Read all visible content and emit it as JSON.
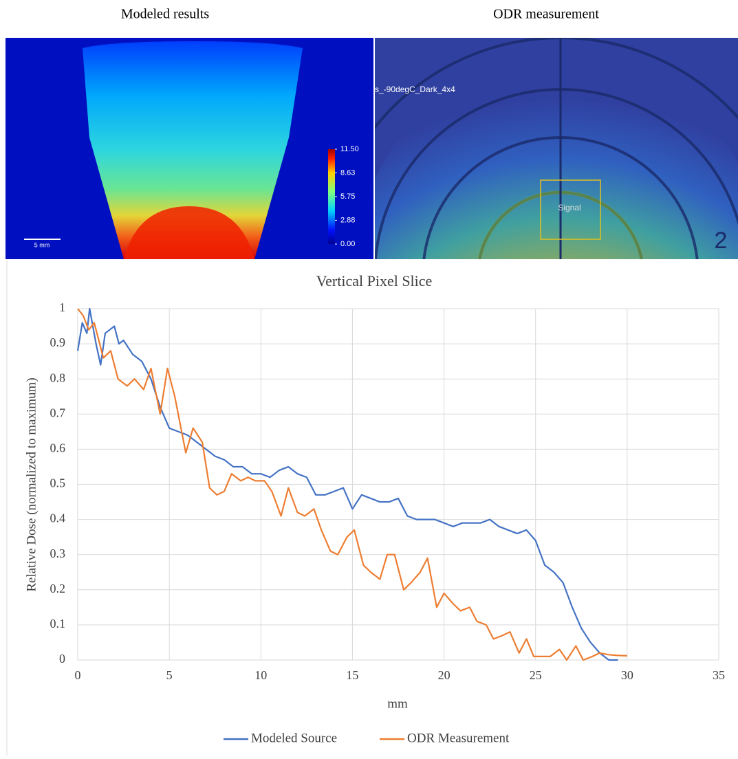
{
  "figure": {
    "left_title": "Modeled results",
    "right_title": "ODR measurement",
    "scale_bar": "5 mm",
    "colorbar": {
      "lim": [
        0,
        11.5
      ],
      "ticks": [
        {
          "value": 11.5,
          "label": "11.50"
        },
        {
          "value": 8.63,
          "label": "8.63"
        },
        {
          "value": 5.75,
          "label": "5.75"
        },
        {
          "value": 2.88,
          "label": "2.88"
        },
        {
          "value": 0,
          "label": "0.00"
        }
      ]
    },
    "odr_file_label": "s_-90degC_Dark_4x4",
    "roi_label": "Signal",
    "ring_label": "2"
  },
  "chart_data": {
    "type": "line",
    "title": "Vertical Pixel Slice",
    "x_label": "mm",
    "y_label": "Relative Dose (normalized to maximum)",
    "xlim": [
      0,
      35
    ],
    "xticks": [
      0,
      5,
      10,
      15,
      20,
      25,
      30,
      35
    ],
    "ylim": [
      0,
      1
    ],
    "yticks": [
      0,
      0.1,
      0.2,
      0.3,
      0.4,
      0.5,
      0.6,
      0.7,
      0.8,
      0.9,
      1
    ],
    "grid": true,
    "legend": "bottom",
    "series": [
      {
        "name": "Modeled Source",
        "color": "#4472c4",
        "x": [
          0,
          0.25,
          0.5,
          0.65,
          1,
          1.25,
          1.5,
          2,
          2.25,
          2.5,
          3,
          3.5,
          4,
          4.5,
          5,
          5.5,
          6,
          6.5,
          7,
          7.5,
          8,
          8.5,
          9,
          9.5,
          10,
          10.5,
          11,
          11.5,
          12,
          12.5,
          13,
          13.5,
          14,
          14.5,
          15,
          15.5,
          16,
          16.5,
          17,
          17.5,
          18,
          18.5,
          19,
          19.5,
          20,
          20.5,
          21,
          21.5,
          22,
          22.5,
          23,
          23.5,
          24,
          24.5,
          25,
          25.5,
          26,
          26.5,
          27,
          27.5,
          28,
          28.5,
          29,
          29.5
        ],
        "values": [
          0.88,
          0.96,
          0.93,
          1,
          0.9,
          0.84,
          0.93,
          0.95,
          0.9,
          0.91,
          0.87,
          0.85,
          0.8,
          0.72,
          0.66,
          0.65,
          0.64,
          0.62,
          0.6,
          0.58,
          0.57,
          0.55,
          0.55,
          0.53,
          0.53,
          0.52,
          0.54,
          0.55,
          0.53,
          0.52,
          0.47,
          0.47,
          0.48,
          0.49,
          0.43,
          0.47,
          0.46,
          0.45,
          0.45,
          0.46,
          0.41,
          0.4,
          0.4,
          0.4,
          0.39,
          0.38,
          0.39,
          0.39,
          0.39,
          0.4,
          0.38,
          0.37,
          0.36,
          0.37,
          0.34,
          0.27,
          0.25,
          0.22,
          0.15,
          0.09,
          0.05,
          0.02,
          0,
          0
        ]
      },
      {
        "name": "ODR Measurement",
        "color": "#ed7d31",
        "x": [
          0,
          0.3,
          0.6,
          0.9,
          1.4,
          1.8,
          2.2,
          2.7,
          3.1,
          3.6,
          4,
          4.5,
          4.9,
          5.3,
          5.9,
          6.3,
          6.8,
          7.2,
          7.6,
          8,
          8.4,
          8.9,
          9.3,
          9.7,
          10.2,
          10.6,
          11.1,
          11.5,
          12,
          12.4,
          12.9,
          13.3,
          13.8,
          14.2,
          14.7,
          15.1,
          15.6,
          16,
          16.5,
          16.9,
          17.3,
          17.8,
          18.2,
          18.7,
          19.1,
          19.6,
          20,
          20.5,
          20.9,
          21.4,
          21.8,
          22.3,
          22.7,
          23.2,
          23.6,
          24.1,
          24.5,
          24.9,
          25.4,
          25.8,
          26.3,
          26.7,
          27.2,
          27.6,
          28.1,
          28.5,
          29,
          29.5,
          30
        ],
        "values": [
          1,
          0.98,
          0.94,
          0.96,
          0.86,
          0.88,
          0.8,
          0.78,
          0.8,
          0.77,
          0.83,
          0.7,
          0.83,
          0.75,
          0.59,
          0.66,
          0.62,
          0.49,
          0.47,
          0.48,
          0.53,
          0.51,
          0.52,
          0.51,
          0.51,
          0.48,
          0.41,
          0.49,
          0.42,
          0.41,
          0.43,
          0.37,
          0.31,
          0.3,
          0.35,
          0.37,
          0.27,
          0.25,
          0.23,
          0.3,
          0.3,
          0.2,
          0.22,
          0.25,
          0.29,
          0.15,
          0.19,
          0.16,
          0.14,
          0.15,
          0.11,
          0.1,
          0.06,
          0.07,
          0.08,
          0.02,
          0.06,
          0.01,
          0.01,
          0.01,
          0.03,
          0,
          0.04,
          0,
          0.01,
          0.02,
          0.015,
          0.013,
          0.012
        ]
      }
    ]
  }
}
